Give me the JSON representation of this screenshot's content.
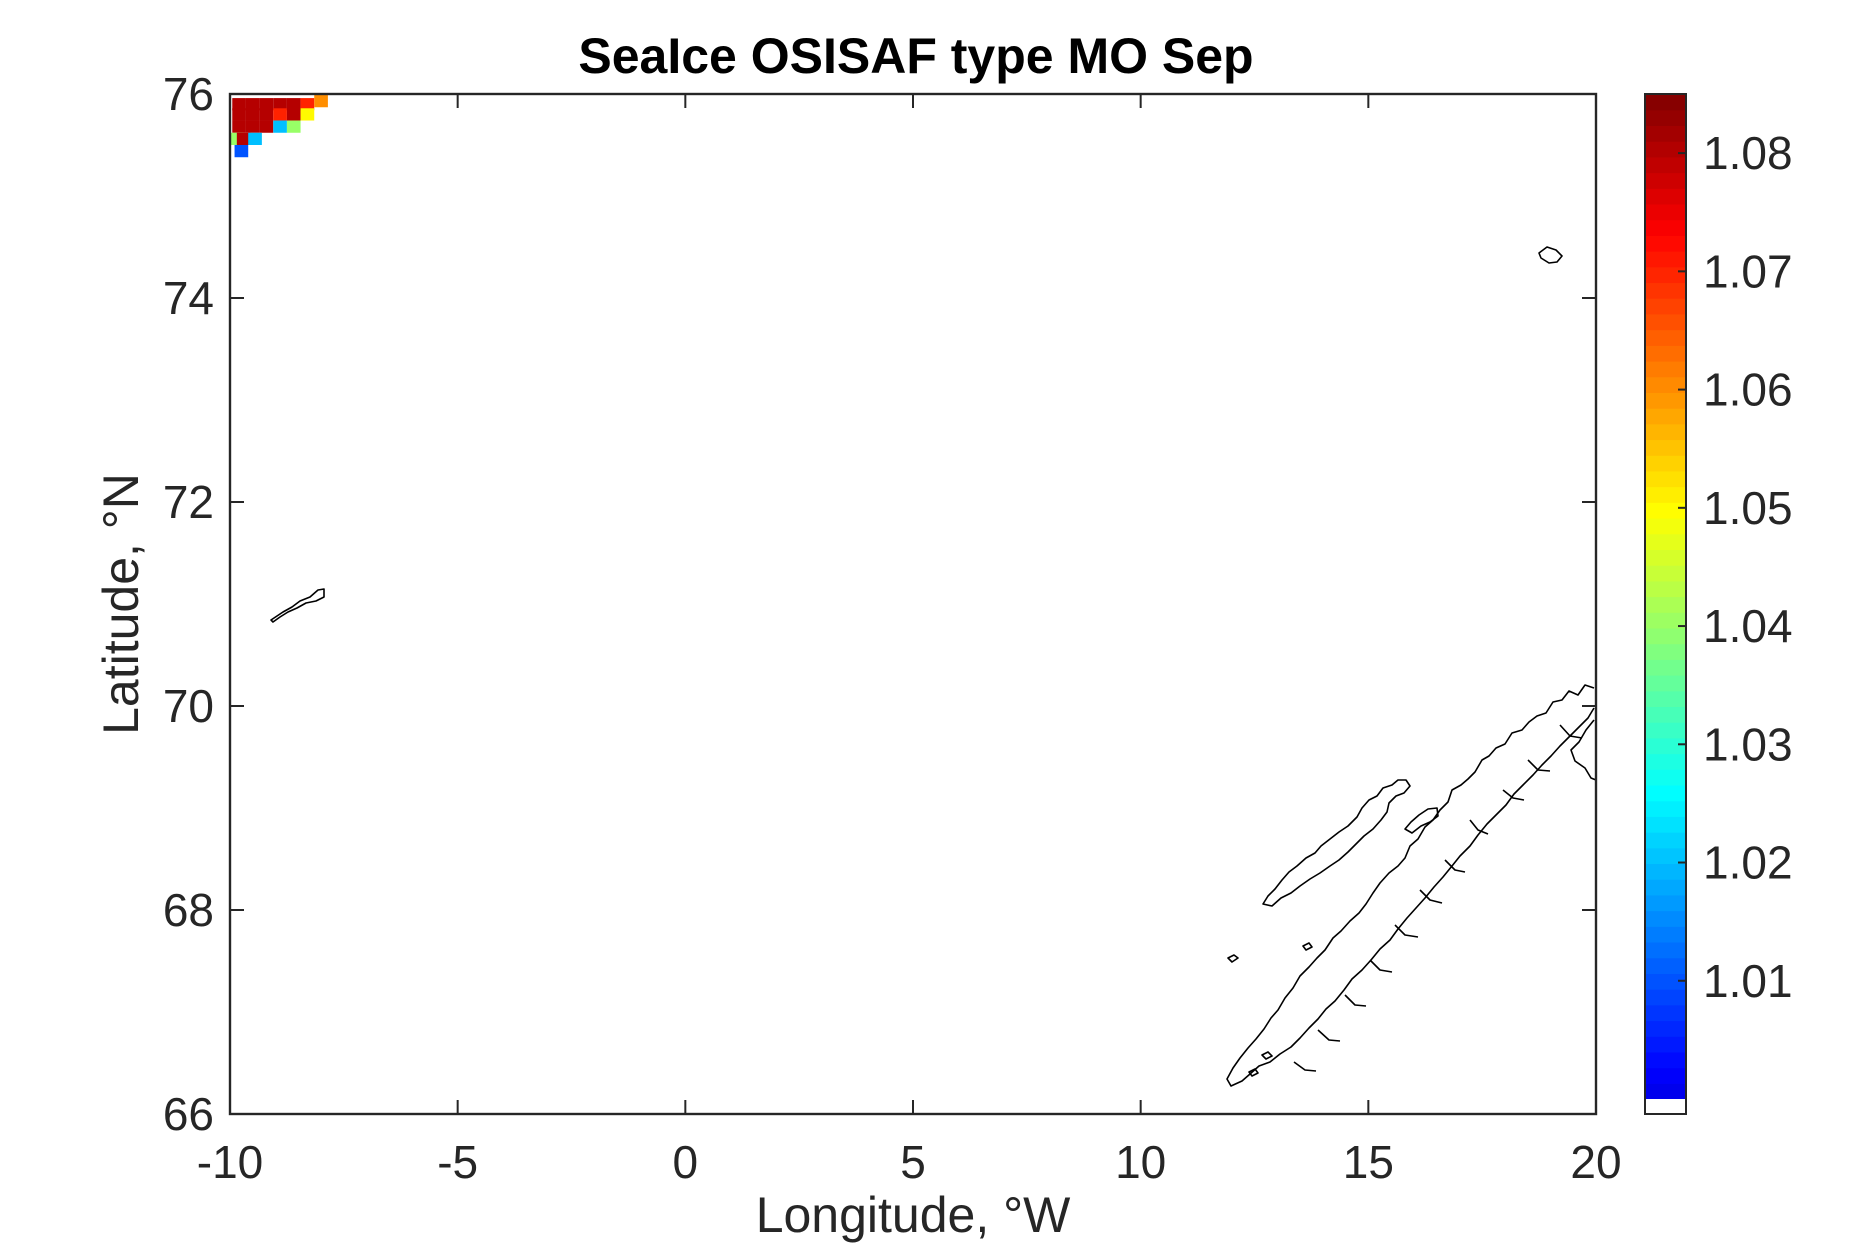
{
  "chart_data": {
    "type": "heatmap",
    "title": "SeaIce OSISAF type MO Sep",
    "xlabel": "Longitude, °W",
    "ylabel": "Latitude, °N",
    "xlim": [
      -10,
      20
    ],
    "ylim": [
      66,
      76
    ],
    "xticks": [
      "-10",
      "-5",
      "0",
      "5",
      "10",
      "15",
      "20"
    ],
    "yticks": [
      "66",
      "68",
      "70",
      "72",
      "74",
      "76"
    ],
    "colorbar": {
      "range": [
        1.0,
        1.085
      ],
      "ticks": [
        "1.01",
        "1.02",
        "1.03",
        "1.04",
        "1.05",
        "1.06",
        "1.07",
        "1.08"
      ],
      "colormap": "jet"
    },
    "cells": [
      {
        "lon": -9.8,
        "lat": 75.9,
        "value": 1.08
      },
      {
        "lon": -9.5,
        "lat": 75.9,
        "value": 1.08
      },
      {
        "lon": -9.2,
        "lat": 75.9,
        "value": 1.08
      },
      {
        "lon": -8.9,
        "lat": 75.9,
        "value": 1.08
      },
      {
        "lon": -8.6,
        "lat": 75.9,
        "value": 1.08
      },
      {
        "lon": -8.3,
        "lat": 75.9,
        "value": 1.07
      },
      {
        "lon": -8.0,
        "lat": 75.93,
        "value": 1.06
      },
      {
        "lon": -9.8,
        "lat": 75.8,
        "value": 1.08
      },
      {
        "lon": -9.5,
        "lat": 75.8,
        "value": 1.08
      },
      {
        "lon": -9.2,
        "lat": 75.8,
        "value": 1.08
      },
      {
        "lon": -8.9,
        "lat": 75.8,
        "value": 1.07
      },
      {
        "lon": -8.6,
        "lat": 75.8,
        "value": 1.08
      },
      {
        "lon": -8.3,
        "lat": 75.8,
        "value": 1.05
      },
      {
        "lon": -9.8,
        "lat": 75.68,
        "value": 1.08
      },
      {
        "lon": -9.5,
        "lat": 75.68,
        "value": 1.08
      },
      {
        "lon": -9.2,
        "lat": 75.68,
        "value": 1.08
      },
      {
        "lon": -8.9,
        "lat": 75.68,
        "value": 1.02
      },
      {
        "lon": -8.6,
        "lat": 75.68,
        "value": 1.04
      },
      {
        "lon": -9.9,
        "lat": 75.56,
        "value": 1.04
      },
      {
        "lon": -9.7,
        "lat": 75.56,
        "value": 1.08
      },
      {
        "lon": -9.45,
        "lat": 75.56,
        "value": 1.02
      },
      {
        "lon": -9.75,
        "lat": 75.44,
        "value": 1.01
      }
    ],
    "land_outline": "coastline (Norway, Jan Mayen, Bear Island)"
  }
}
